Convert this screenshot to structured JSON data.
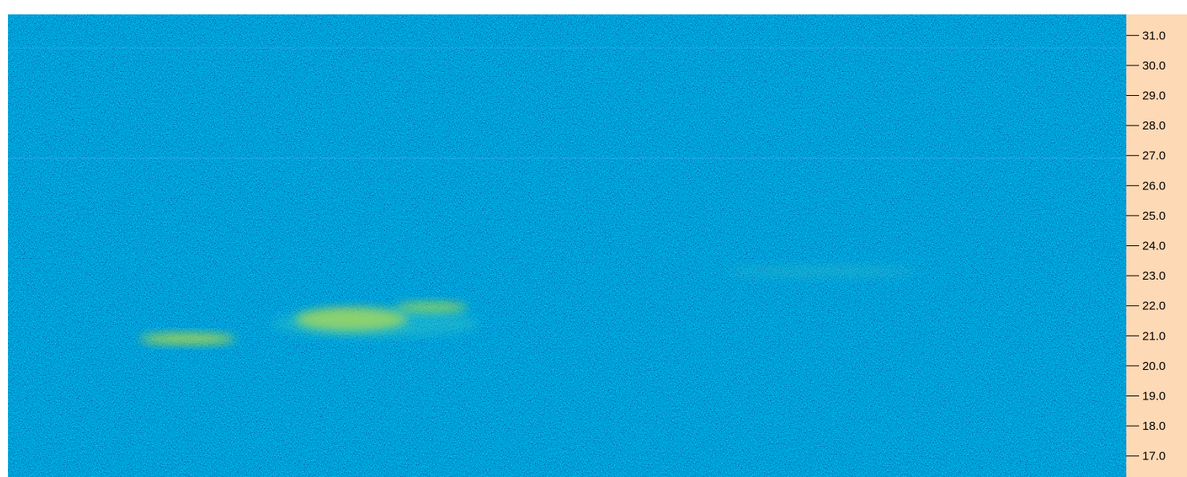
{
  "axis": {
    "ylim": [
      16.3,
      31.7
    ],
    "ticks": [
      {
        "value": 17,
        "label": "17.0"
      },
      {
        "value": 18,
        "label": "18.0"
      },
      {
        "value": 19,
        "label": "19.0"
      },
      {
        "value": 20,
        "label": "20.0"
      },
      {
        "value": 21,
        "label": "21.0"
      },
      {
        "value": 22,
        "label": "22.0"
      },
      {
        "value": 23,
        "label": "23.0"
      },
      {
        "value": 24,
        "label": "24.0"
      },
      {
        "value": 25,
        "label": "25.0"
      },
      {
        "value": 26,
        "label": "26.0"
      },
      {
        "value": 27,
        "label": "27.0"
      },
      {
        "value": 28,
        "label": "28.0"
      },
      {
        "value": 29,
        "label": "29.0"
      },
      {
        "value": 30,
        "label": "30.0"
      },
      {
        "value": 31,
        "label": "31.0"
      }
    ]
  }
}
